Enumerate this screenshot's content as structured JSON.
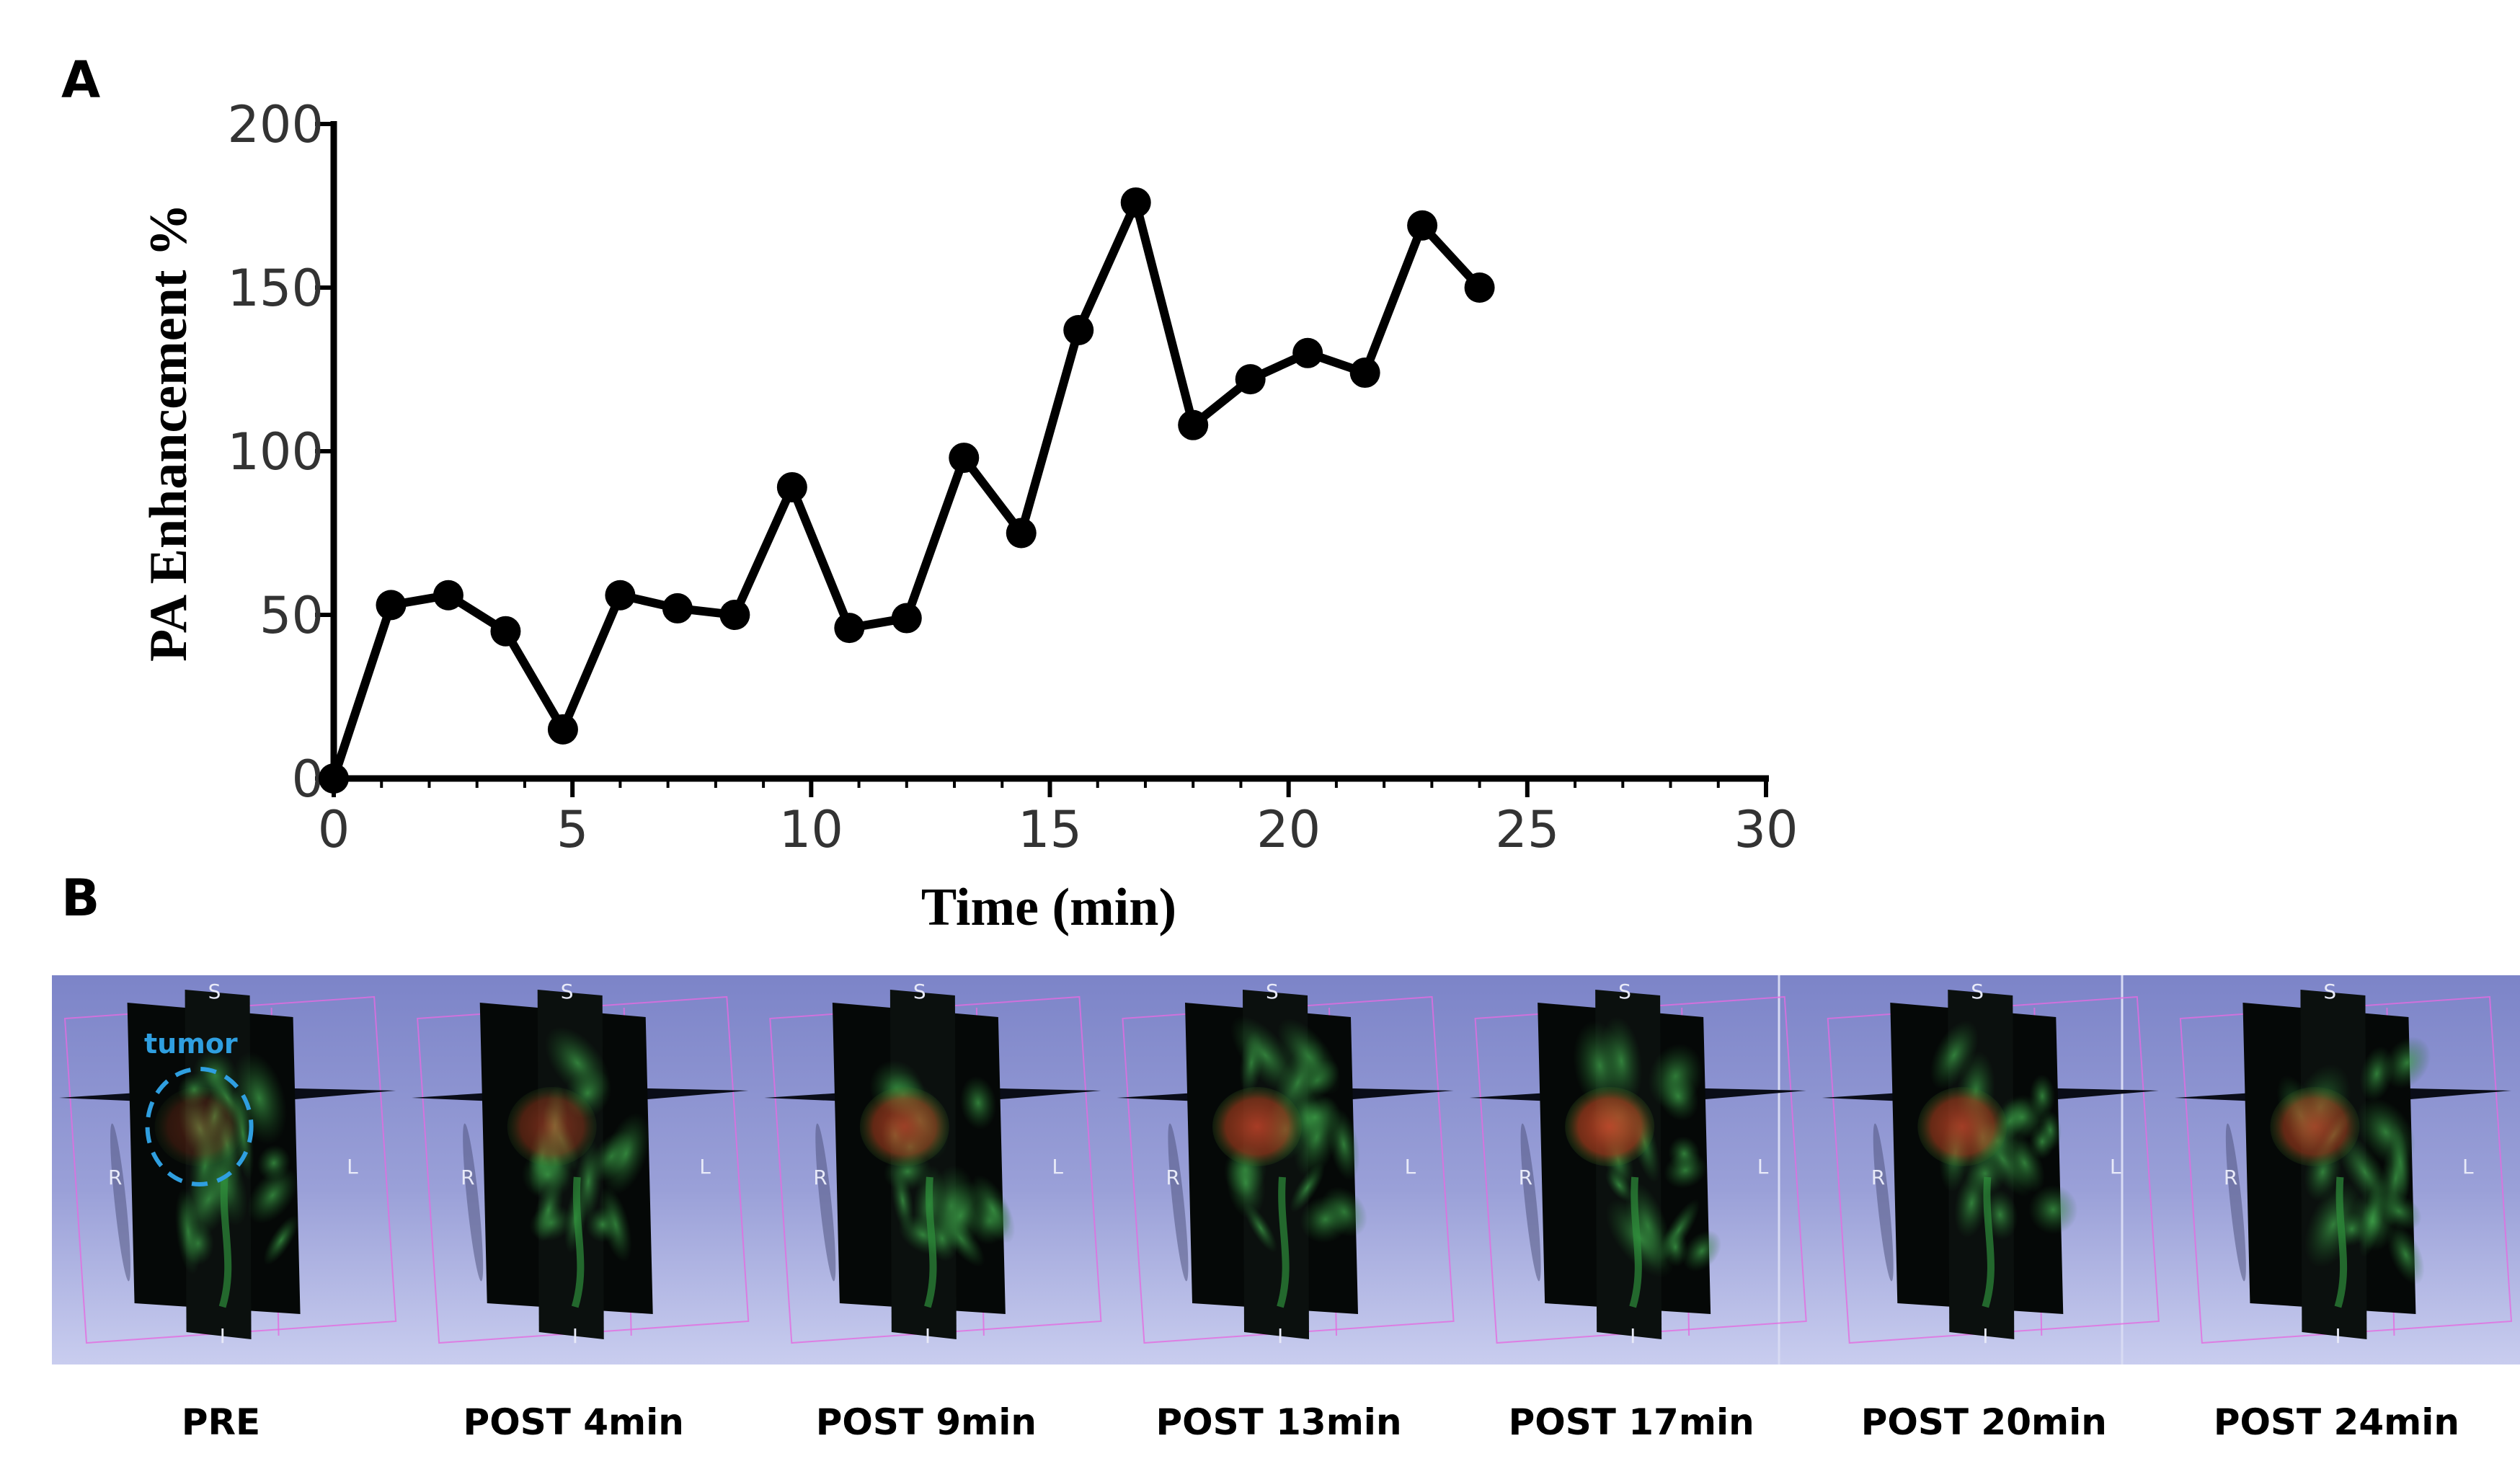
{
  "panel_a_letter": "A",
  "panel_b_letter": "B",
  "chart_data": {
    "type": "line",
    "title": "",
    "xlabel": "Time (min)",
    "ylabel": "PA Enhancement %",
    "xlim": [
      0,
      30
    ],
    "ylim": [
      0,
      200
    ],
    "xticks": [
      0,
      5,
      10,
      15,
      20,
      25,
      30
    ],
    "yticks": [
      0,
      50,
      100,
      150,
      200
    ],
    "grid": false,
    "series": [
      {
        "name": "PA Enhancement",
        "color": "#000000",
        "x": [
          0,
          1.2,
          2.4,
          3.6,
          4.8,
          6.0,
          7.2,
          8.4,
          9.6,
          10.8,
          12.0,
          13.2,
          14.4,
          15.6,
          16.8,
          18.0,
          19.2,
          20.4,
          21.6,
          22.8,
          24.0
        ],
        "y": [
          0,
          53,
          56,
          45,
          15,
          56,
          52,
          50,
          89,
          46,
          49,
          98,
          75,
          137,
          176,
          108,
          122,
          130,
          124,
          169,
          150
        ]
      }
    ]
  },
  "panel_b": {
    "colors": {
      "background_top": "#7c84c8",
      "background_bottom": "#c9cdef",
      "box_edge": "#e36ce0",
      "tumor_outline": "#2f9fe0",
      "vessel_green": "#2e8f3a",
      "tumor_red": "#c4442a",
      "slice_black": "#050807"
    },
    "orientation_labels": {
      "superior": "S",
      "inferior": "I",
      "right": "R",
      "left": "L"
    },
    "tumor_label": "tumor",
    "frames": [
      {
        "caption": "PRE",
        "enhancement": 0.15
      },
      {
        "caption": "POST 4min",
        "enhancement": 0.5
      },
      {
        "caption": "POST 9min",
        "enhancement": 0.75
      },
      {
        "caption": "POST 13min",
        "enhancement": 0.85
      },
      {
        "caption": "POST 17min",
        "enhancement": 0.95
      },
      {
        "caption": "POST 20min",
        "enhancement": 0.8
      },
      {
        "caption": "POST 24min",
        "enhancement": 0.75
      }
    ]
  }
}
